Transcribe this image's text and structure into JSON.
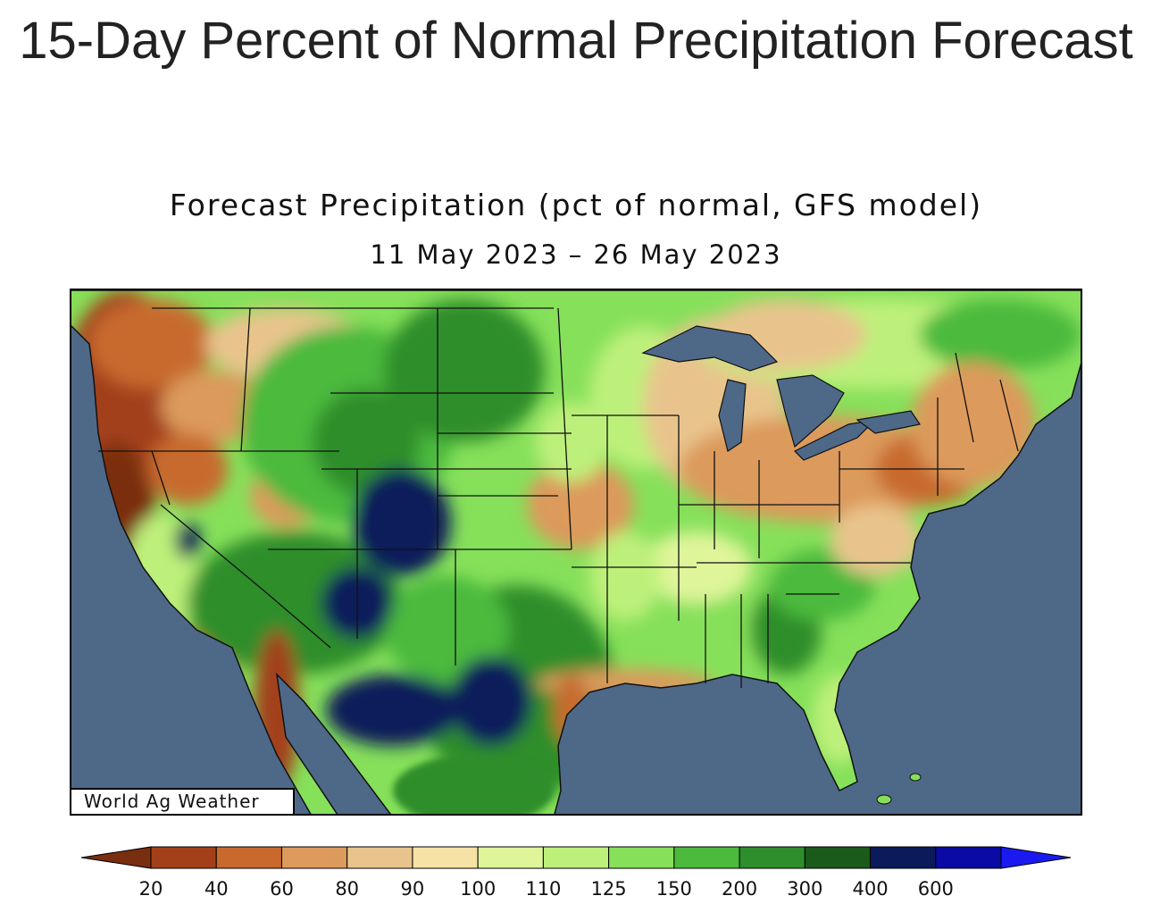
{
  "page": {
    "title": "15-Day Percent of Normal Precipitation Forecast"
  },
  "map": {
    "title": "Forecast Precipitation (pct of normal, GFS model)",
    "date_range": "11 May 2023 – 26 May 2023",
    "credit": "World Ag Weather",
    "ocean_color": "#4e6888",
    "regions": [
      {
        "name": "Pacific Northwest coast",
        "category": "20-40 pct"
      },
      {
        "name": "California coast",
        "category": "20-60 pct"
      },
      {
        "name": "Northern Rockies / Plains",
        "category": "125-200 pct"
      },
      {
        "name": "Colorado / New Mexico",
        "category": "400-600 pct"
      },
      {
        "name": "West Texas",
        "category": "400-600 pct"
      },
      {
        "name": "Midwest / Great Lakes",
        "category": "60-90 pct"
      },
      {
        "name": "Southeast",
        "category": "110-200 pct"
      },
      {
        "name": "Northeast coast",
        "category": "40-60 pct"
      }
    ]
  },
  "legend": {
    "ticks": [
      "20",
      "40",
      "60",
      "80",
      "90",
      "100",
      "110",
      "125",
      "150",
      "200",
      "300",
      "400",
      "600"
    ],
    "colors": [
      "#7a2e10",
      "#a3401a",
      "#c86a2e",
      "#dc9a5c",
      "#e8c48c",
      "#f6e2a4",
      "#dff59a",
      "#bdf07a",
      "#86e05a",
      "#4cba3c",
      "#2e8e2c",
      "#1a5a1a",
      "#0a1a5a",
      "#0a0aa4",
      "#1a1af0"
    ]
  }
}
